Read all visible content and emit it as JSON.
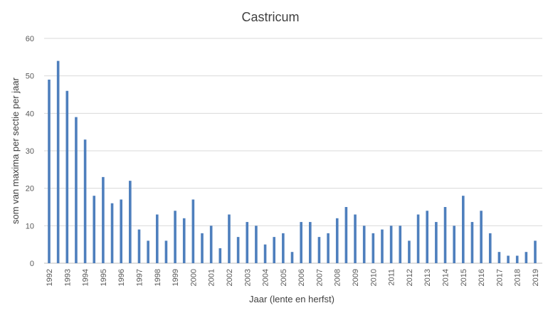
{
  "chart_data": {
    "type": "bar",
    "title": "Castricum",
    "xlabel": "Jaar (lente en herfst)",
    "ylabel": "som van maxima per sectie per jaar",
    "ylim": [
      0,
      60
    ],
    "yticks": [
      0,
      10,
      20,
      30,
      40,
      50,
      60
    ],
    "grid": true,
    "color": "#4e7fbd",
    "x_tick_labels": [
      "1992",
      "1993",
      "1994",
      "1995",
      "1996",
      "1997",
      "1998",
      "1999",
      "2000",
      "2001",
      "2002",
      "2003",
      "2004",
      "2005",
      "2006",
      "2007",
      "2008",
      "2009",
      "2010",
      "2011",
      "2012",
      "2013",
      "2014",
      "2015",
      "2016",
      "2017",
      "2018",
      "2019"
    ],
    "values": [
      49,
      54,
      46,
      39,
      33,
      18,
      23,
      16,
      17,
      22,
      9,
      6,
      13,
      6,
      14,
      12,
      17,
      8,
      10,
      4,
      13,
      7,
      11,
      10,
      5,
      7,
      8,
      3,
      11,
      11,
      7,
      8,
      12,
      15,
      13,
      10,
      8,
      9,
      10,
      10,
      6,
      13,
      14,
      11,
      15,
      10,
      18,
      11,
      14,
      8,
      3,
      2,
      2,
      3,
      6
    ]
  }
}
